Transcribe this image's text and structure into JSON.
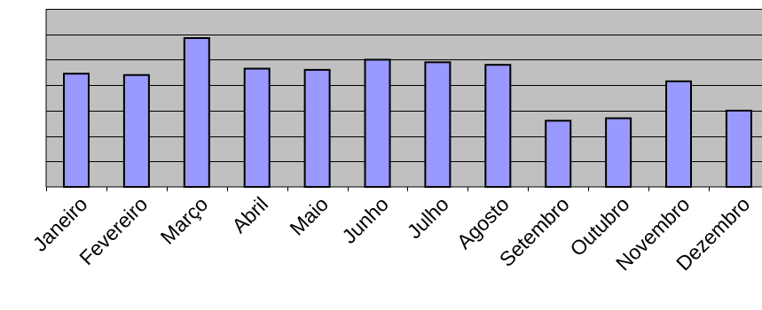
{
  "chart_data": {
    "type": "bar",
    "title": "",
    "xlabel": "",
    "ylabel": "",
    "categories": [
      "Janeiro",
      "Fevereiro",
      "Março",
      "Abril",
      "Maio",
      "Junho",
      "Julho",
      "Agosto",
      "Setembro",
      "Outubro",
      "Novembro",
      "Dezembro"
    ],
    "series": [
      {
        "values": [
          4.45,
          4.4,
          5.85,
          4.65,
          4.6,
          5.0,
          4.9,
          4.8,
          2.6,
          2.7,
          4.15,
          3.0
        ]
      }
    ],
    "ylim": [
      0,
      7
    ],
    "y_gridlines": [
      1,
      2,
      3,
      4,
      5,
      6,
      7
    ],
    "grid": true,
    "legend": "none",
    "colors": {
      "bar_fill": "#9999ff",
      "bar_stroke": "#000000",
      "plot_background": "#c0c0c0",
      "gridline": "#000000"
    }
  }
}
